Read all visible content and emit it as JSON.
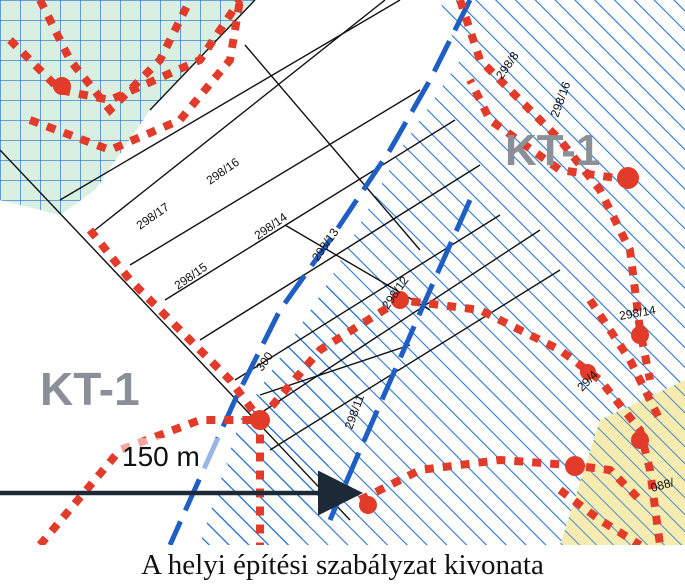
{
  "caption": "A helyi építési szabályzat kivonata",
  "zones": [
    {
      "id": "kt1-left",
      "label": "KT-1"
    },
    {
      "id": "kt1-right",
      "label": "KT-1"
    }
  ],
  "parcels": [
    "298/17",
    "298/16",
    "298/15",
    "298/14",
    "298/13",
    "298/12",
    "298/11",
    "300",
    "298/8",
    "298/16",
    "298/14",
    "29/4",
    "088/"
  ],
  "scale": {
    "label": "150 m"
  },
  "colors": {
    "hatch": "#1f6fd0",
    "grid": "#1f6fd0",
    "grid_fill": "#d9efe2",
    "boundary": "#e23b2a",
    "yellow_area": "#f6ecb0",
    "dash_blue": "#1f5fc4",
    "line": "#111111"
  }
}
